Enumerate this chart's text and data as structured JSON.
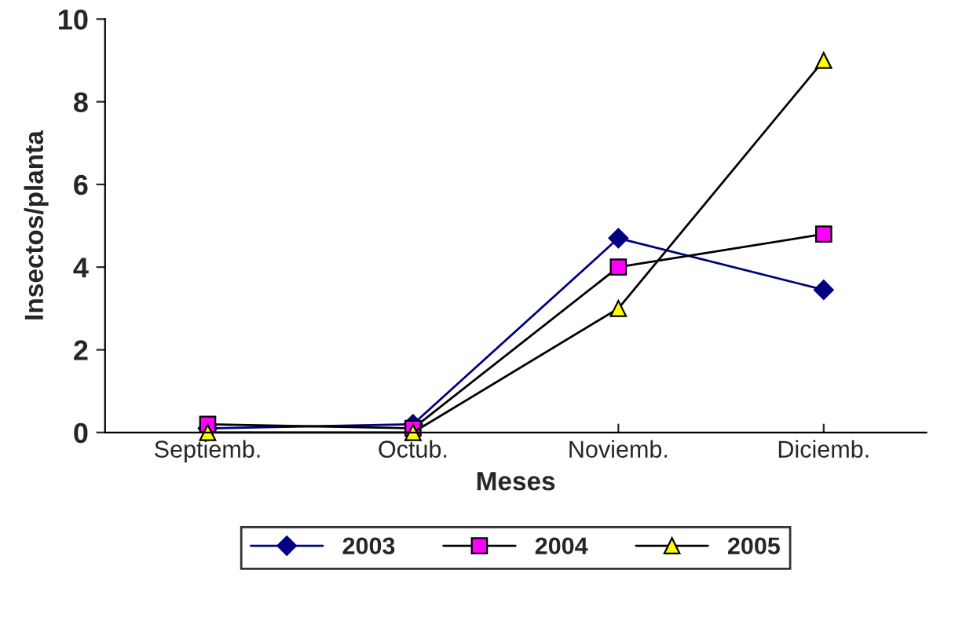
{
  "chart_data": {
    "type": "line",
    "xlabel": "Meses",
    "ylabel": "Insectos/planta",
    "categories": [
      "Septiemb.",
      "Octub.",
      "Noviemb.",
      "Diciemb."
    ],
    "series": [
      {
        "name": "2003",
        "color": "#000080",
        "marker": "diamond",
        "values": [
          0.1,
          0.2,
          4.7,
          3.45
        ]
      },
      {
        "name": "2004",
        "color": "#ff00ff",
        "marker": "square",
        "values": [
          0.2,
          0.1,
          4.0,
          4.8
        ]
      },
      {
        "name": "2005",
        "color": "#ffff00",
        "marker": "triangle",
        "values": [
          0.0,
          0.0,
          3.0,
          9.0
        ]
      }
    ],
    "ylim": [
      0,
      10
    ],
    "yticks": [
      0,
      2,
      4,
      6,
      8,
      10
    ],
    "grid": false,
    "legend": "bottom",
    "line_style": "solid"
  }
}
